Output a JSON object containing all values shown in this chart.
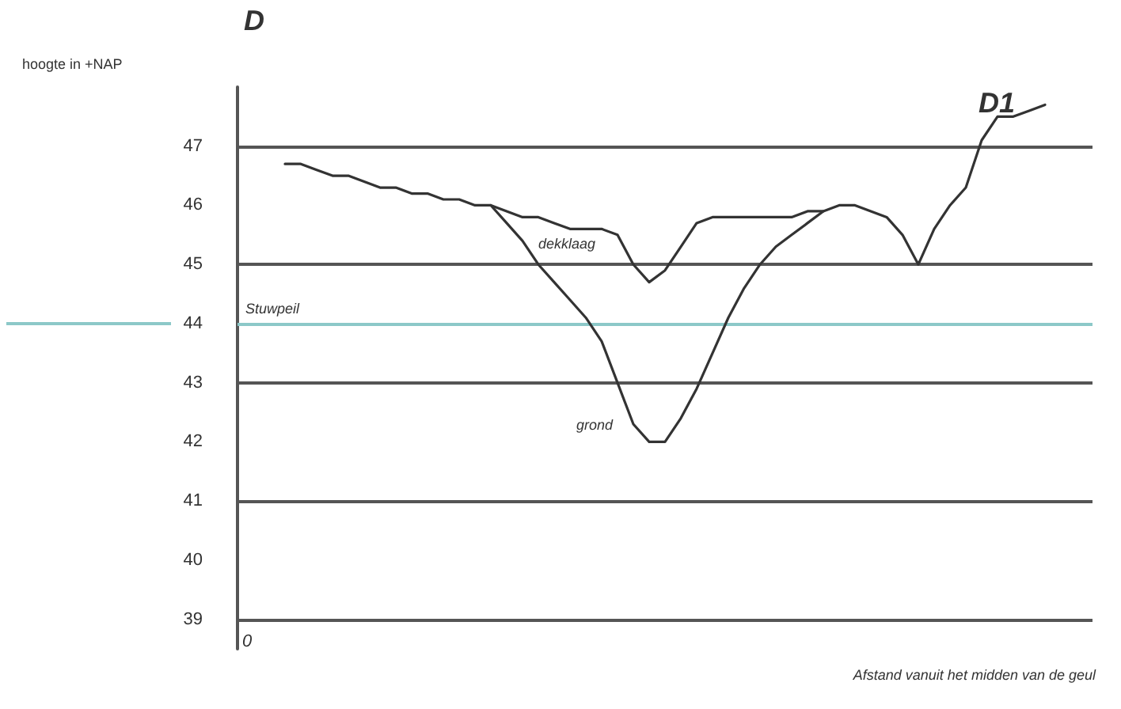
{
  "chart_data": {
    "type": "line",
    "xlabel": "Afstand vanuit het midden van de geul",
    "ylabel": "hoogte in +NAP",
    "annotations": [
      "D",
      "D1",
      "0"
    ],
    "categories": [
      null,
      null,
      null,
      null,
      null,
      null,
      null,
      null,
      null,
      null,
      null,
      null,
      null,
      null,
      null,
      null,
      null,
      null,
      null,
      null,
      null,
      null,
      null,
      null,
      null,
      null,
      null,
      null,
      null,
      null,
      null,
      null,
      null,
      null,
      null,
      null,
      null,
      null,
      null,
      null,
      null,
      null,
      null,
      null,
      null,
      null,
      null,
      null,
      null,
      null,
      null,
      null,
      null,
      null,
      null
    ],
    "series": [
      {
        "name": "dekklaag",
        "color": "#333333",
        "values": [
          null,
          null,
          null,
          46.7,
          46.7,
          46.6,
          46.5,
          46.5,
          46.4,
          46.3,
          46.3,
          46.2,
          46.2,
          46.1,
          46.1,
          46.0,
          46.0,
          45.9,
          45.8,
          45.8,
          45.7,
          45.6,
          45.6,
          45.6,
          45.5,
          45.0,
          44.7,
          44.9,
          45.3,
          45.7,
          45.8,
          45.8,
          45.8,
          45.8,
          45.8,
          45.8,
          45.9,
          45.9,
          46.0,
          46.0,
          45.9,
          45.8,
          45.5,
          45.0,
          45.6,
          46.0,
          46.3,
          47.1,
          47.5,
          47.5,
          47.6,
          47.7,
          null,
          null,
          null
        ]
      },
      {
        "name": "grond",
        "color": "#333333",
        "values": [
          null,
          null,
          null,
          null,
          null,
          null,
          null,
          null,
          null,
          null,
          null,
          null,
          null,
          null,
          null,
          null,
          46.0,
          45.7,
          45.4,
          45.0,
          44.7,
          44.4,
          44.1,
          43.7,
          43.0,
          42.3,
          42.0,
          42.0,
          42.4,
          42.9,
          43.5,
          44.1,
          44.6,
          45.0,
          45.3,
          45.5,
          45.7,
          45.9,
          null,
          null,
          null,
          null,
          null,
          null,
          null,
          null,
          null,
          null,
          null,
          null,
          null,
          null,
          null,
          null,
          null
        ]
      }
    ],
    "ylim": [
      38.5,
      48
    ],
    "yticks": [
      39,
      40,
      41,
      42,
      43,
      44,
      45,
      46,
      47
    ],
    "grid": false,
    "legend": false,
    "marker": "none",
    "line_style": "solid",
    "ref_lines": [
      {
        "axis": "y",
        "value": 47,
        "color": "#555555"
      },
      {
        "axis": "y",
        "value": 45,
        "color": "#555555"
      },
      {
        "axis": "y",
        "value": 43,
        "color": "#555555"
      },
      {
        "axis": "y",
        "value": 41,
        "color": "#555555"
      },
      {
        "axis": "y",
        "value": 39,
        "color": "#555555"
      },
      {
        "axis": "y",
        "value": 44,
        "label": "Stuwpeil",
        "color": "#8cc8c8"
      }
    ]
  }
}
